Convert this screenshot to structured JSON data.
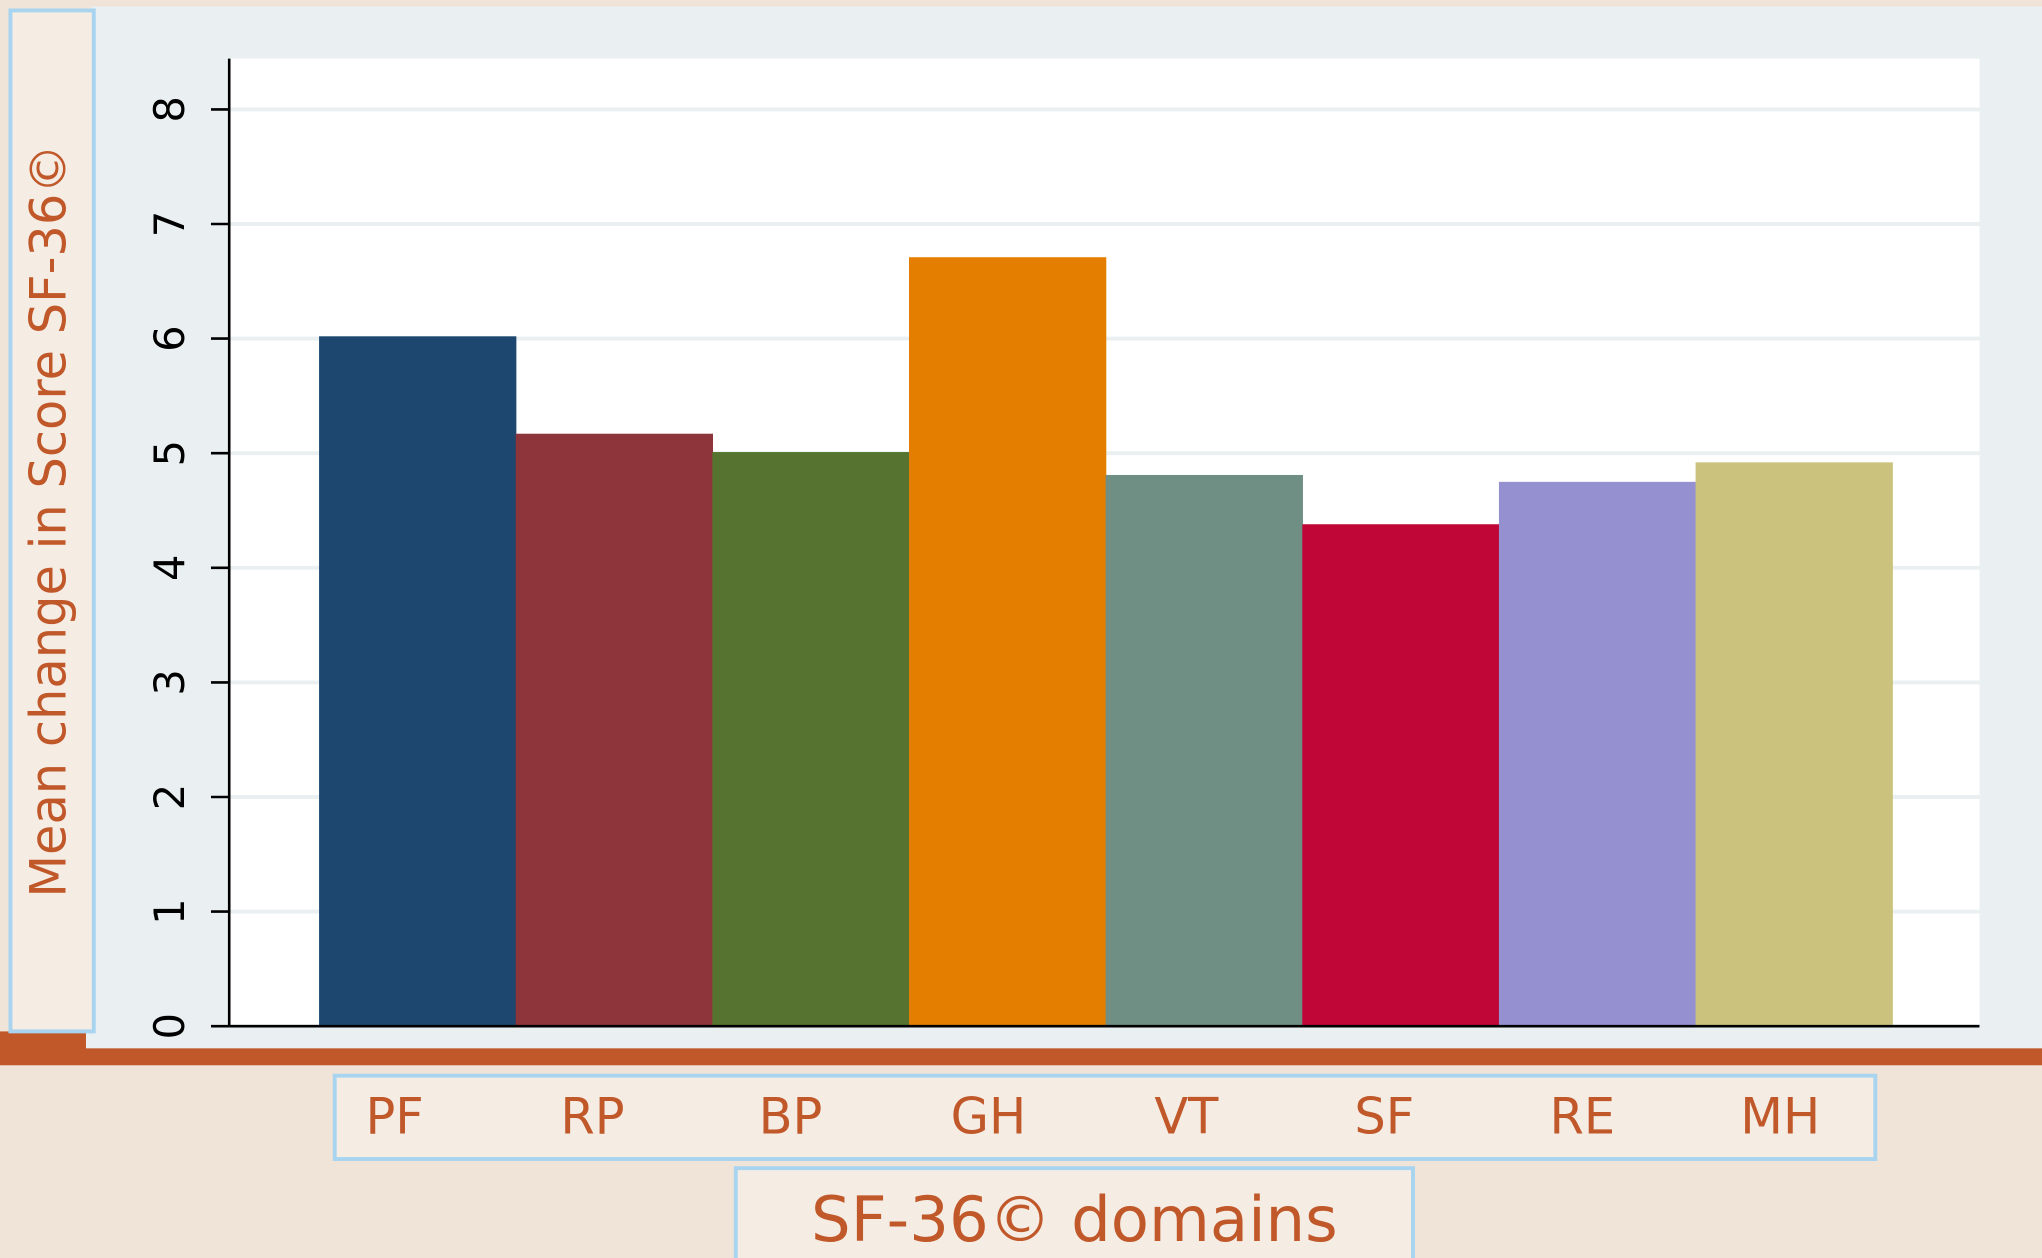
{
  "chart_data": {
    "type": "bar",
    "xlabel": "SF-36© domains",
    "ylabel": "Mean change in Score SF-36©",
    "categories": [
      "PF",
      "RP",
      "BP",
      "GH",
      "VT",
      "SF",
      "RE",
      "MH"
    ],
    "values": [
      6.02,
      5.17,
      5.01,
      6.71,
      4.81,
      4.38,
      4.75,
      4.92
    ],
    "colors": [
      "#1d476e",
      "#8e343b",
      "#56742f",
      "#e37e00",
      "#6f8e84",
      "#c00636",
      "#9590d0",
      "#cbc27e"
    ],
    "ylim": [
      0,
      8
    ],
    "yticks": [
      0,
      1,
      2,
      3,
      4,
      5,
      6,
      7,
      8
    ],
    "grid": true
  }
}
